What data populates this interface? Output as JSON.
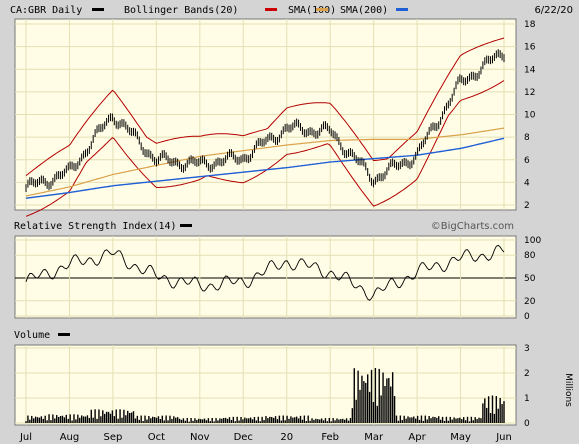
{
  "header": {
    "symbol_label": "CA:GBR Daily",
    "legend": [
      {
        "label": "Bollinger Bands(20)",
        "color": "#cc0000"
      },
      {
        "label": "SMA(100)",
        "color": "#d9a14a"
      },
      {
        "label": "SMA(200)",
        "color": "#1f5fd6"
      }
    ],
    "date": "6/22/20"
  },
  "rsi_panel": {
    "title": "Relative Strength Index(14)",
    "watermark": "©BigCharts.com"
  },
  "volume_panel": {
    "title": "Volume",
    "unit_label": "Millions"
  },
  "colors": {
    "background": "#d4d4d4",
    "plot_bg": "#fffde6",
    "grid": "#e3e0b4",
    "price": "#000000",
    "bollinger": "#b30000",
    "sma100": "#d9a14a",
    "sma200": "#1f5fd6"
  },
  "chart_data": [
    {
      "type": "line",
      "title": "CA:GBR Daily",
      "x": [
        "Jul",
        "Aug",
        "Sep",
        "Oct",
        "Nov",
        "Dec",
        "20",
        "Feb",
        "Mar",
        "Apr",
        "May",
        "Jun"
      ],
      "ylim": [
        2,
        18
      ],
      "yticks": [
        2,
        4,
        6,
        8,
        10,
        12,
        14,
        16,
        18
      ],
      "grid": true,
      "series": [
        {
          "name": "CA:GBR Daily",
          "values": [
            3.5,
            4.9,
            10.0,
            6.0,
            5.6,
            6.2,
            8.8,
            8.5,
            4.3,
            6.4,
            12.8,
            15.5
          ]
        },
        {
          "name": "SMA(100)",
          "values": [
            2.8,
            3.6,
            4.7,
            5.5,
            6.3,
            6.8,
            7.3,
            7.7,
            7.8,
            7.8,
            8.2,
            8.8
          ]
        },
        {
          "name": "SMA(200)",
          "values": [
            2.6,
            3.1,
            3.7,
            4.1,
            4.5,
            4.9,
            5.3,
            5.8,
            6.1,
            6.4,
            7.0,
            7.9
          ]
        }
      ]
    },
    {
      "type": "line",
      "title": "Relative Strength Index(14)",
      "x": [
        "Jul",
        "Aug",
        "Sep",
        "Oct",
        "Nov",
        "Dec",
        "20",
        "Feb",
        "Mar",
        "Apr",
        "May",
        "Jun"
      ],
      "ylim": [
        0,
        100
      ],
      "yticks": [
        0,
        20,
        50,
        80,
        100
      ],
      "series": [
        {
          "name": "Relative Strength Index(14)",
          "values": [
            45,
            68,
            82,
            52,
            40,
            45,
            72,
            58,
            28,
            58,
            76,
            85
          ]
        }
      ]
    },
    {
      "type": "bar",
      "title": "Volume",
      "x": [
        "Jul",
        "Aug",
        "Sep",
        "Oct",
        "Nov",
        "Dec",
        "20",
        "Feb",
        "Mar",
        "Apr",
        "May",
        "Jun"
      ],
      "ylim": [
        0,
        3
      ],
      "yticks": [
        0,
        1,
        2,
        3
      ],
      "ylabel": "Millions",
      "series": [
        {
          "name": "Volume",
          "values": [
            0.3,
            0.35,
            0.55,
            0.3,
            0.2,
            0.25,
            0.3,
            0.2,
            2.2,
            0.3,
            0.25,
            1.1
          ]
        }
      ]
    }
  ]
}
